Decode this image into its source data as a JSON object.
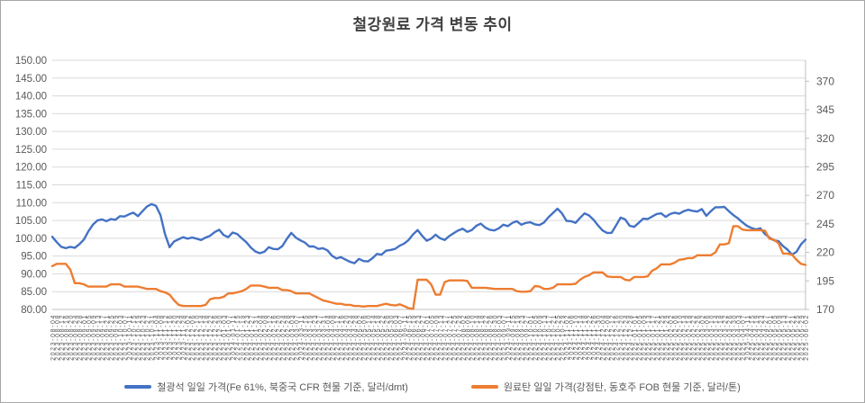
{
  "title": "철강원료 가격 변동 추이",
  "colors": {
    "iron_ore": "#4472C4",
    "coking_coal": "#ED7D31",
    "gridline": "#D9D9D9",
    "axis_line": "#BFBFBF",
    "axis_text": "#595959",
    "title_text": "#404040"
  },
  "chart_data": {
    "type": "line",
    "title": "철강원료 가격 변동 추이",
    "xlabel": "",
    "ylabel": "",
    "grid": true,
    "legend_position": "bottom",
    "left_axis": {
      "min": 80,
      "max": 150,
      "ticks": [
        "150.00",
        "145.00",
        "140.00",
        "135.00",
        "130.00",
        "125.00",
        "120.00",
        "115.00",
        "110.00",
        "105.00",
        "100.00",
        "95.00",
        "90.00",
        "85.00",
        "80.00"
      ]
    },
    "right_axis": {
      "min": 170,
      "max": 388.4,
      "ticks": [
        "370",
        "345",
        "320",
        "295",
        "270",
        "245",
        "220",
        "195",
        "170"
      ]
    },
    "x": [
      "2023-08-04",
      "2023-08-08",
      "2023-08-12",
      "2023-08-16",
      "2023-08-20",
      "2023-08-24",
      "2023-08-28",
      "2023-09-01",
      "2023-09-05",
      "2023-09-09",
      "2023-09-13",
      "2023-09-17",
      "2023-09-21",
      "2023-09-25",
      "2023-09-29",
      "2023-10-03",
      "2023-10-07",
      "2023-10-11",
      "2023-10-15",
      "2023-10-19",
      "2023-10-23",
      "2023-10-27",
      "2023-10-31",
      "2023-11-04",
      "2023-11-08",
      "2023-11-12",
      "2023-11-16",
      "2023-11-20",
      "2023-11-24",
      "2023-11-28",
      "2023-12-02",
      "2023-12-06",
      "2023-12-10",
      "2023-12-14",
      "2023-12-18",
      "2023-12-22",
      "2023-12-26",
      "2023-12-30",
      "2024-01-03",
      "2024-01-07",
      "2024-01-11",
      "2024-01-15",
      "2024-01-19",
      "2024-01-23",
      "2024-01-27",
      "2024-01-31",
      "2024-02-04",
      "2024-02-08",
      "2024-02-12",
      "2024-02-16",
      "2024-02-20",
      "2024-02-24",
      "2024-02-28",
      "2024-03-03",
      "2024-03-07",
      "2024-03-11",
      "2024-03-15",
      "2024-03-19",
      "2024-03-23",
      "2024-03-27",
      "2024-03-31",
      "2024-04-04",
      "2024-04-08",
      "2024-04-12",
      "2024-04-16",
      "2024-04-20",
      "2024-04-24",
      "2024-04-28",
      "2024-05-02",
      "2024-05-06",
      "2024-05-10",
      "2024-05-14",
      "2024-05-18",
      "2024-05-22",
      "2024-05-26",
      "2024-05-30",
      "2024-06-03",
      "2024-06-07",
      "2024-06-11",
      "2024-06-15",
      "2024-06-19",
      "2024-06-23",
      "2024-06-27",
      "2024-07-01",
      "2024-07-05",
      "2024-07-09",
      "2024-07-13",
      "2024-07-17",
      "2024-07-21",
      "2024-07-25",
      "2024-07-29",
      "2024-08-02",
      "2024-08-06",
      "2024-08-10",
      "2024-08-14",
      "2024-08-18",
      "2024-08-22",
      "2024-08-26",
      "2024-08-30",
      "2024-09-03",
      "2024-09-07",
      "2024-09-11",
      "2024-09-15",
      "2024-09-19",
      "2024-09-23",
      "2024-09-27",
      "2024-10-01",
      "2024-10-05",
      "2024-10-09",
      "2024-10-13",
      "2024-10-17",
      "2024-10-21",
      "2024-10-25",
      "2024-10-29",
      "2024-11-02",
      "2024-11-06",
      "2024-11-10",
      "2024-11-14",
      "2024-11-18",
      "2024-11-22",
      "2024-11-26",
      "2024-11-30",
      "2024-12-04",
      "2024-12-08",
      "2024-12-12",
      "2024-12-16",
      "2024-12-20",
      "2024-12-24",
      "2024-12-28",
      "2025-01-01",
      "2025-01-05",
      "2025-01-09",
      "2025-01-13",
      "2025-01-17",
      "2025-01-21",
      "2025-01-25",
      "2025-01-29",
      "2025-02-02",
      "2025-02-06",
      "2025-02-10",
      "2025-02-14",
      "2025-02-18",
      "2025-02-22",
      "2025-02-26",
      "2025-03-02",
      "2025-03-06",
      "2025-03-10",
      "2025-03-14",
      "2025-03-18",
      "2025-03-22",
      "2025-03-26",
      "2025-03-30",
      "2025-04-03",
      "2025-04-07",
      "2025-04-11",
      "2025-04-15",
      "2025-04-19",
      "2025-04-23",
      "2025-04-27",
      "2025-05-01",
      "2025-05-05",
      "2025-05-09",
      "2025-05-13",
      "2025-05-17",
      "2025-05-21",
      "2025-05-25",
      "2025-05-29",
      "2025-06-02"
    ],
    "series": [
      {
        "name": "철광석 일일 가격(Fe 61%, 북중국 CFR 현물 기준, 달러/dmt)",
        "axis": "left",
        "color": "#4472C4",
        "values": [
          100.4,
          98.9,
          97.6,
          97.2,
          97.6,
          97.3,
          98.3,
          99.6,
          101.9,
          103.8,
          105.0,
          105.3,
          104.8,
          105.4,
          105.2,
          106.2,
          106.1,
          106.7,
          107.2,
          106.2,
          107.6,
          108.9,
          109.6,
          109.1,
          106.5,
          101.2,
          97.5,
          99.1,
          99.7,
          100.3,
          99.9,
          100.2,
          99.9,
          99.5,
          100.2,
          100.7,
          101.7,
          102.4,
          100.9,
          100.3,
          101.6,
          101.2,
          100.0,
          98.9,
          97.4,
          96.3,
          95.8,
          96.2,
          97.5,
          97.0,
          96.9,
          97.8,
          99.8,
          101.5,
          100.2,
          99.4,
          98.8,
          97.7,
          97.7,
          97.0,
          97.2,
          96.6,
          95.1,
          94.3,
          94.7,
          94.0,
          93.4,
          93.0,
          94.2,
          93.6,
          93.5,
          94.4,
          95.6,
          95.4,
          96.5,
          96.7,
          97.0,
          97.9,
          98.5,
          99.5,
          101.1,
          102.3,
          100.7,
          99.3,
          99.9,
          101.0,
          100.0,
          99.5,
          100.6,
          101.4,
          102.2,
          102.7,
          101.8,
          102.3,
          103.5,
          104.1,
          103.0,
          102.4,
          102.2,
          102.8,
          103.8,
          103.4,
          104.3,
          104.8,
          103.8,
          104.3,
          104.5,
          103.9,
          103.7,
          104.4,
          105.9,
          107.1,
          108.3,
          107.0,
          104.9,
          104.8,
          104.3,
          105.7,
          107.0,
          106.4,
          105.2,
          103.6,
          102.2,
          101.5,
          101.5,
          103.6,
          105.8,
          105.3,
          103.5,
          103.2,
          104.3,
          105.5,
          105.4,
          106.1,
          106.8,
          107.0,
          106.0,
          106.8,
          107.2,
          106.9,
          107.6,
          108.0,
          107.7,
          107.5,
          108.2,
          106.3,
          107.6,
          108.7,
          108.7,
          108.8,
          107.6,
          106.5,
          105.6,
          104.5,
          103.5,
          102.9,
          102.5,
          102.8,
          101.2,
          100.2,
          99.4,
          99.2,
          97.8,
          96.8,
          95.4,
          96.2,
          98.3,
          99.6
        ]
      },
      {
        "name": "원료탄 일일 가격(강점탄, 동호주 FOB 현물 기준, 달러/톤)",
        "axis": "right",
        "color": "#ED7D31",
        "values": [
          208,
          210,
          210,
          210,
          205,
          193,
          193,
          192,
          190,
          190,
          190,
          190,
          190,
          192,
          192,
          192,
          190,
          190,
          190,
          190,
          189,
          188,
          188,
          188,
          186,
          185,
          183,
          178,
          174,
          173,
          173,
          173,
          173,
          173,
          174,
          179,
          180,
          180,
          181,
          184,
          184,
          185,
          186,
          188,
          191,
          191,
          191,
          190,
          189,
          189,
          189,
          187,
          187,
          186,
          184,
          184,
          184,
          184,
          182,
          180,
          178,
          177,
          176,
          175,
          175,
          174,
          174,
          173,
          173,
          172.5,
          173,
          173,
          173,
          174,
          175,
          174,
          173.5,
          174.5,
          173,
          171,
          170.5,
          196,
          196,
          196,
          192,
          183,
          183,
          194,
          195.5,
          195.5,
          195.5,
          195.5,
          195,
          189,
          189,
          189,
          189,
          188.5,
          188,
          188,
          188,
          188,
          188,
          186,
          185.5,
          185.5,
          186,
          190.5,
          190,
          188,
          188,
          189,
          192,
          192,
          192,
          192,
          192.5,
          196,
          198.5,
          200,
          202.5,
          202.5,
          202.5,
          199,
          198.5,
          198.5,
          198.5,
          196,
          195.5,
          198.5,
          198.5,
          198.5,
          199,
          204,
          206,
          209.5,
          209.5,
          209.5,
          211,
          213.5,
          214,
          215,
          215,
          217.5,
          217.5,
          217.5,
          217.5,
          220,
          227,
          227,
          228,
          243,
          243,
          240,
          239.5,
          239.5,
          239.5,
          239.5,
          239,
          232,
          231,
          228,
          219,
          219,
          218,
          213.5,
          210,
          209
        ]
      }
    ]
  }
}
